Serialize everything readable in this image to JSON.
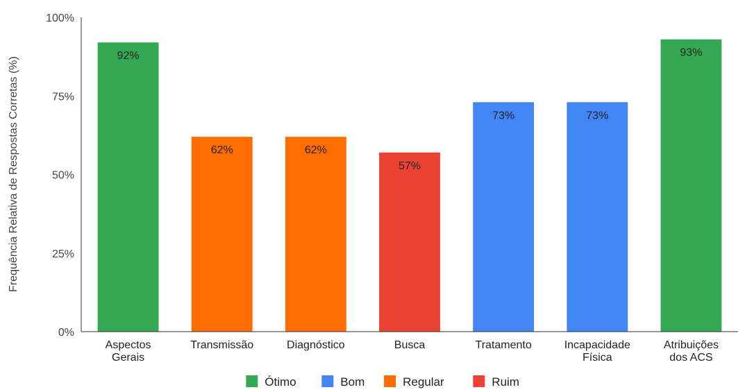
{
  "chart_data": {
    "type": "bar",
    "ylabel": "Frequência Relativa de Respostas Corretas (%)",
    "xlabel": "",
    "ylim": [
      0,
      100
    ],
    "yticks": [
      "0%",
      "25%",
      "50%",
      "75%",
      "100%"
    ],
    "categories": [
      [
        "Aspectos",
        "Gerais"
      ],
      [
        "Transmissão"
      ],
      [
        "Diagnóstico"
      ],
      [
        "Busca"
      ],
      [
        "Tratamento"
      ],
      [
        "Incapacidade",
        "Física"
      ],
      [
        "Atribuições",
        "dos ACS"
      ]
    ],
    "values": [
      92,
      62,
      62,
      57,
      73,
      73,
      93
    ],
    "data_labels": [
      "92%",
      "62%",
      "62%",
      "57%",
      "73%",
      "73%",
      "93%"
    ],
    "bar_classes": [
      "Ótimo",
      "Regular",
      "Regular",
      "Ruim",
      "Bom",
      "Bom",
      "Ótimo"
    ],
    "legend": [
      {
        "name": "Ótimo",
        "color": "#34a853"
      },
      {
        "name": "Bom",
        "color": "#4285f4"
      },
      {
        "name": "Regular",
        "color": "#ff6d01"
      },
      {
        "name": "Ruim",
        "color": "#ea4335"
      }
    ],
    "legend_position": "bottom",
    "grid": false
  }
}
